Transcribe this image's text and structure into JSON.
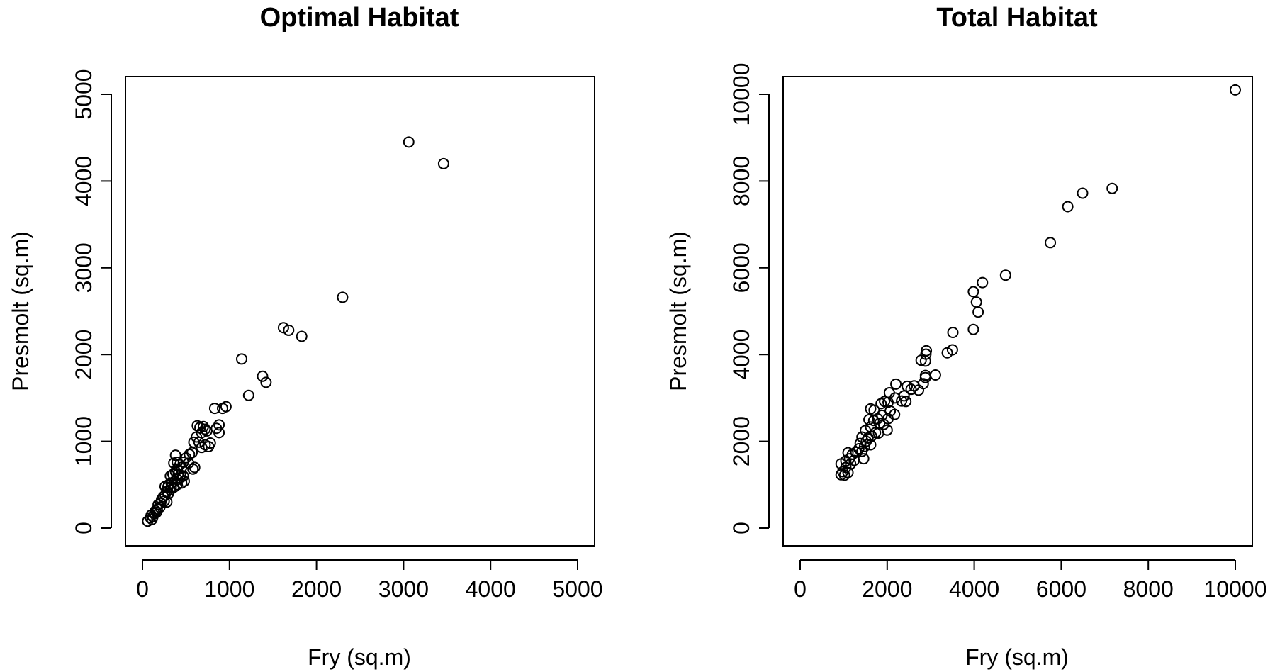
{
  "chart_data": [
    {
      "type": "scatter",
      "title": "Optimal Habitat",
      "xlabel": "Fry (sq.m)",
      "ylabel": "Presmolt (sq.m)",
      "xlim": [
        0,
        5000
      ],
      "ylim": [
        0,
        5000
      ],
      "xticks": [
        0,
        1000,
        2000,
        3000,
        4000,
        5000
      ],
      "yticks": [
        0,
        1000,
        2000,
        3000,
        4000,
        5000
      ],
      "grid": false,
      "points": [
        [
          3060,
          4450
        ],
        [
          3460,
          4200
        ],
        [
          2300,
          2660
        ],
        [
          1620,
          2310
        ],
        [
          1680,
          2280
        ],
        [
          1830,
          2210
        ],
        [
          1140,
          1950
        ],
        [
          1380,
          1750
        ],
        [
          1420,
          1680
        ],
        [
          1220,
          1530
        ],
        [
          960,
          1400
        ],
        [
          920,
          1380
        ],
        [
          830,
          1380
        ],
        [
          880,
          1190
        ],
        [
          850,
          1150
        ],
        [
          880,
          1100
        ],
        [
          700,
          1170
        ],
        [
          630,
          1180
        ],
        [
          660,
          1160
        ],
        [
          720,
          1140
        ],
        [
          740,
          1120
        ],
        [
          680,
          1100
        ],
        [
          620,
          1050
        ],
        [
          780,
          980
        ],
        [
          720,
          960
        ],
        [
          650,
          990
        ],
        [
          590,
          990
        ],
        [
          680,
          930
        ],
        [
          760,
          940
        ],
        [
          570,
          870
        ],
        [
          540,
          850
        ],
        [
          500,
          810
        ],
        [
          470,
          760
        ],
        [
          530,
          750
        ],
        [
          600,
          700
        ],
        [
          580,
          680
        ],
        [
          450,
          700
        ],
        [
          380,
          840
        ],
        [
          360,
          750
        ],
        [
          400,
          760
        ],
        [
          430,
          730
        ],
        [
          400,
          680
        ],
        [
          380,
          650
        ],
        [
          350,
          620
        ],
        [
          320,
          600
        ],
        [
          410,
          620
        ],
        [
          440,
          610
        ],
        [
          470,
          600
        ],
        [
          430,
          580
        ],
        [
          400,
          560
        ],
        [
          370,
          540
        ],
        [
          330,
          520
        ],
        [
          300,
          500
        ],
        [
          290,
          470
        ],
        [
          260,
          480
        ],
        [
          330,
          470
        ],
        [
          360,
          470
        ],
        [
          400,
          500
        ],
        [
          450,
          520
        ],
        [
          480,
          540
        ],
        [
          320,
          440
        ],
        [
          280,
          420
        ],
        [
          300,
          400
        ],
        [
          260,
          380
        ],
        [
          240,
          360
        ],
        [
          220,
          330
        ],
        [
          250,
          310
        ],
        [
          280,
          300
        ],
        [
          210,
          290
        ],
        [
          180,
          270
        ],
        [
          200,
          240
        ],
        [
          170,
          220
        ],
        [
          150,
          200
        ],
        [
          140,
          170
        ],
        [
          120,
          130
        ],
        [
          100,
          150
        ],
        [
          90,
          120
        ],
        [
          60,
          80
        ],
        [
          110,
          100
        ],
        [
          160,
          180
        ]
      ]
    },
    {
      "type": "scatter",
      "title": "Total Habitat",
      "xlabel": "Fry (sq.m)",
      "ylabel": "Presmolt (sq.m)",
      "xlim": [
        0,
        10000
      ],
      "ylim": [
        0,
        10000
      ],
      "xticks": [
        0,
        2000,
        4000,
        6000,
        8000,
        10000
      ],
      "yticks": [
        0,
        2000,
        4000,
        6000,
        8000,
        10000
      ],
      "grid": false,
      "points": [
        [
          10000,
          10100
        ],
        [
          7170,
          7830
        ],
        [
          6490,
          7720
        ],
        [
          6150,
          7410
        ],
        [
          5750,
          6580
        ],
        [
          4720,
          5830
        ],
        [
          4190,
          5660
        ],
        [
          3980,
          5450
        ],
        [
          4050,
          5210
        ],
        [
          4090,
          4980
        ],
        [
          3510,
          4510
        ],
        [
          3980,
          4580
        ],
        [
          3500,
          4110
        ],
        [
          3380,
          4040
        ],
        [
          2900,
          4090
        ],
        [
          2890,
          4010
        ],
        [
          2780,
          3870
        ],
        [
          2880,
          3850
        ],
        [
          3110,
          3530
        ],
        [
          2880,
          3520
        ],
        [
          2880,
          3470
        ],
        [
          2830,
          3330
        ],
        [
          2620,
          3280
        ],
        [
          2720,
          3180
        ],
        [
          2550,
          3200
        ],
        [
          2460,
          3270
        ],
        [
          2200,
          3320
        ],
        [
          2390,
          3050
        ],
        [
          2330,
          2930
        ],
        [
          2430,
          2920
        ],
        [
          2180,
          3000
        ],
        [
          2050,
          3120
        ],
        [
          2020,
          2900
        ],
        [
          1940,
          2920
        ],
        [
          1860,
          2870
        ],
        [
          2070,
          2700
        ],
        [
          2170,
          2620
        ],
        [
          2020,
          2520
        ],
        [
          1880,
          2600
        ],
        [
          1700,
          2720
        ],
        [
          1620,
          2750
        ],
        [
          1780,
          2520
        ],
        [
          1690,
          2480
        ],
        [
          1830,
          2420
        ],
        [
          2000,
          2260
        ],
        [
          1920,
          2390
        ],
        [
          1580,
          2500
        ],
        [
          1620,
          2330
        ],
        [
          1500,
          2250
        ],
        [
          1730,
          2200
        ],
        [
          1800,
          2190
        ],
        [
          1640,
          2120
        ],
        [
          1560,
          2080
        ],
        [
          1420,
          2100
        ],
        [
          1520,
          2000
        ],
        [
          1380,
          1950
        ],
        [
          1620,
          1920
        ],
        [
          1480,
          1880
        ],
        [
          1350,
          1830
        ],
        [
          1420,
          1770
        ],
        [
          1280,
          1750
        ],
        [
          1200,
          1700
        ],
        [
          1100,
          1740
        ],
        [
          1130,
          1600
        ],
        [
          1050,
          1550
        ],
        [
          940,
          1480
        ],
        [
          1460,
          1600
        ],
        [
          1240,
          1560
        ],
        [
          1160,
          1480
        ],
        [
          1050,
          1400
        ],
        [
          980,
          1300
        ],
        [
          940,
          1230
        ],
        [
          1020,
          1220
        ],
        [
          1100,
          1280
        ]
      ]
    }
  ]
}
